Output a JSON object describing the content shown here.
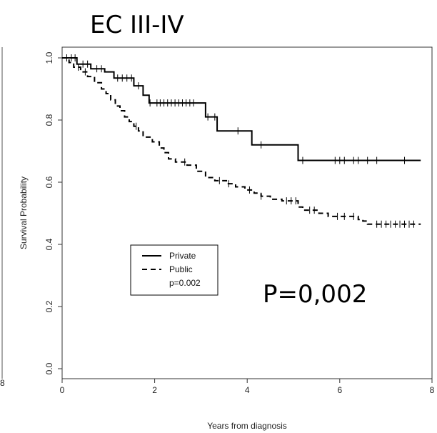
{
  "chart_data": {
    "type": "line",
    "title": "EC III-IV",
    "xlabel": "Years from diagnosis",
    "ylabel": "Survival Probability",
    "xlim": [
      0,
      8
    ],
    "ylim": [
      0,
      1
    ],
    "x_ticks": [
      "0",
      "2",
      "4",
      "6",
      "8"
    ],
    "y_ticks": [
      "0.0",
      "0.2",
      "0.4",
      "0.6",
      "0.8",
      "1.0"
    ],
    "legend": {
      "placement": "center-left",
      "entries": [
        "Private",
        "Public"
      ],
      "note": "p=0.002"
    },
    "annotation": "P=0,002",
    "left_edge_fragment": "8",
    "series": [
      {
        "name": "Private",
        "style": "solid",
        "steps": [
          [
            0,
            1.0
          ],
          [
            0.32,
            0.98
          ],
          [
            0.62,
            0.965
          ],
          [
            0.92,
            0.955
          ],
          [
            1.12,
            0.935
          ],
          [
            1.55,
            0.91
          ],
          [
            1.75,
            0.88
          ],
          [
            1.88,
            0.855
          ],
          [
            3.1,
            0.81
          ],
          [
            3.35,
            0.765
          ],
          [
            4.1,
            0.72
          ],
          [
            5.1,
            0.67
          ],
          [
            7.75,
            0.67
          ]
        ],
        "censor": [
          0.1,
          0.2,
          0.28,
          0.45,
          0.55,
          0.75,
          0.85,
          1.2,
          1.3,
          1.4,
          1.5,
          1.65,
          1.9,
          2.05,
          2.12,
          2.2,
          2.28,
          2.36,
          2.44,
          2.52,
          2.6,
          2.68,
          2.76,
          2.84,
          3.15,
          3.3,
          3.8,
          4.3,
          5.2,
          5.9,
          6.0,
          6.1,
          6.3,
          6.4,
          6.6,
          6.8,
          7.4
        ]
      },
      {
        "name": "Public",
        "style": "dashed",
        "steps": [
          [
            0,
            1.0
          ],
          [
            0.15,
            0.985
          ],
          [
            0.25,
            0.97
          ],
          [
            0.4,
            0.955
          ],
          [
            0.55,
            0.94
          ],
          [
            0.7,
            0.92
          ],
          [
            0.85,
            0.9
          ],
          [
            0.95,
            0.885
          ],
          [
            1.05,
            0.865
          ],
          [
            1.15,
            0.845
          ],
          [
            1.25,
            0.83
          ],
          [
            1.35,
            0.81
          ],
          [
            1.45,
            0.795
          ],
          [
            1.55,
            0.78
          ],
          [
            1.65,
            0.765
          ],
          [
            1.75,
            0.745
          ],
          [
            1.95,
            0.73
          ],
          [
            2.1,
            0.71
          ],
          [
            2.2,
            0.695
          ],
          [
            2.3,
            0.675
          ],
          [
            2.45,
            0.665
          ],
          [
            2.7,
            0.655
          ],
          [
            2.9,
            0.635
          ],
          [
            3.1,
            0.615
          ],
          [
            3.3,
            0.605
          ],
          [
            3.55,
            0.595
          ],
          [
            3.75,
            0.585
          ],
          [
            3.95,
            0.575
          ],
          [
            4.15,
            0.565
          ],
          [
            4.3,
            0.555
          ],
          [
            4.5,
            0.545
          ],
          [
            4.75,
            0.54
          ],
          [
            5.1,
            0.52
          ],
          [
            5.2,
            0.51
          ],
          [
            5.55,
            0.5
          ],
          [
            5.75,
            0.49
          ],
          [
            6.4,
            0.48
          ],
          [
            6.5,
            0.475
          ],
          [
            6.6,
            0.465
          ],
          [
            7.75,
            0.465
          ]
        ],
        "censor": [
          0.35,
          0.5,
          1.6,
          2.65,
          3.4,
          3.6,
          4.05,
          4.3,
          4.85,
          4.95,
          5.05,
          5.35,
          5.45,
          5.95,
          6.1,
          6.3,
          6.8,
          6.9,
          7.0,
          7.1,
          7.2,
          7.3,
          7.4,
          7.5,
          7.6
        ]
      }
    ]
  }
}
